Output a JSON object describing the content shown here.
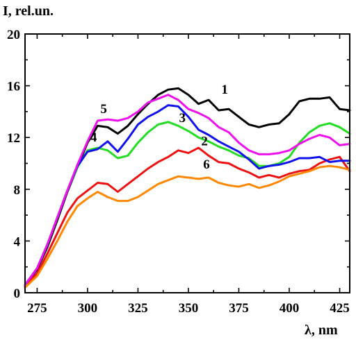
{
  "chart_data": {
    "type": "line",
    "ylabel": "I, rel.un.",
    "xlabel": "λ, nm",
    "xlim": [
      269,
      430
    ],
    "ylim": [
      0,
      20
    ],
    "xticks": [
      275,
      300,
      325,
      350,
      375,
      400,
      425
    ],
    "yticks": [
      0,
      4,
      8,
      12,
      16,
      20
    ],
    "grid": false,
    "series": [
      {
        "name": "1",
        "color": "#000000",
        "x": [
          269,
          275,
          280,
          285,
          290,
          295,
          300,
          305,
          310,
          315,
          320,
          325,
          330,
          335,
          340,
          345,
          350,
          355,
          360,
          365,
          370,
          375,
          380,
          385,
          390,
          395,
          400,
          405,
          410,
          415,
          420,
          425,
          430
        ],
        "y": [
          0.6,
          1.8,
          3.5,
          5.6,
          7.8,
          9.7,
          11.6,
          12.9,
          12.8,
          12.3,
          12.9,
          13.8,
          14.6,
          15.3,
          15.7,
          15.8,
          15.3,
          14.6,
          14.9,
          14.1,
          14.2,
          13.6,
          13.0,
          12.8,
          13.0,
          13.1,
          13.8,
          14.8,
          15.0,
          15.0,
          15.1,
          14.2,
          14.1
        ]
      },
      {
        "name": "2",
        "color": "#ee1111",
        "x": [
          269,
          275,
          280,
          285,
          290,
          295,
          300,
          305,
          310,
          315,
          320,
          325,
          330,
          335,
          340,
          345,
          350,
          355,
          360,
          365,
          370,
          375,
          380,
          385,
          390,
          395,
          400,
          405,
          410,
          415,
          420,
          425,
          430
        ],
        "y": [
          0.5,
          1.5,
          3.0,
          4.6,
          6.2,
          7.3,
          7.9,
          8.5,
          8.4,
          7.8,
          8.4,
          9.0,
          9.6,
          10.1,
          10.5,
          11.0,
          10.8,
          11.2,
          10.6,
          10.1,
          10.0,
          9.6,
          9.3,
          8.9,
          9.1,
          8.9,
          9.2,
          9.4,
          9.5,
          10.0,
          10.3,
          10.5,
          9.4
        ]
      },
      {
        "name": "3",
        "color": "#22dd22",
        "x": [
          269,
          275,
          280,
          285,
          290,
          295,
          300,
          305,
          310,
          315,
          320,
          325,
          330,
          335,
          340,
          345,
          350,
          355,
          360,
          365,
          370,
          375,
          380,
          385,
          390,
          395,
          400,
          405,
          410,
          415,
          420,
          425,
          430
        ],
        "y": [
          0.6,
          1.9,
          3.7,
          5.8,
          7.9,
          9.7,
          11.0,
          11.2,
          11.0,
          10.4,
          10.6,
          11.6,
          12.4,
          13.0,
          13.2,
          12.9,
          12.5,
          12.0,
          11.7,
          11.3,
          11.0,
          10.6,
          10.4,
          9.8,
          9.8,
          10.0,
          10.5,
          11.6,
          12.4,
          12.9,
          13.1,
          12.8,
          12.3
        ]
      },
      {
        "name": "4",
        "color": "#1111ee",
        "x": [
          269,
          275,
          280,
          285,
          290,
          295,
          300,
          305,
          310,
          315,
          320,
          325,
          330,
          335,
          340,
          345,
          350,
          355,
          360,
          365,
          370,
          375,
          380,
          385,
          390,
          395,
          400,
          405,
          410,
          415,
          420,
          425,
          430
        ],
        "y": [
          0.6,
          1.9,
          3.7,
          5.8,
          7.9,
          9.8,
          10.9,
          11.1,
          11.7,
          10.9,
          11.9,
          13.0,
          13.6,
          14.0,
          14.5,
          14.4,
          13.6,
          12.6,
          12.2,
          11.7,
          11.3,
          10.9,
          10.3,
          9.6,
          9.8,
          9.9,
          10.1,
          10.4,
          10.4,
          10.5,
          10.1,
          10.2,
          10.2
        ]
      },
      {
        "name": "5",
        "color": "#ee11ee",
        "x": [
          269,
          275,
          280,
          285,
          290,
          295,
          300,
          305,
          310,
          315,
          320,
          325,
          330,
          335,
          340,
          345,
          350,
          355,
          360,
          365,
          370,
          375,
          380,
          385,
          390,
          395,
          400,
          405,
          410,
          415,
          420,
          425,
          430
        ],
        "y": [
          0.6,
          1.9,
          3.7,
          5.8,
          7.9,
          9.9,
          11.7,
          13.3,
          13.4,
          13.3,
          13.5,
          14.0,
          14.7,
          15.0,
          15.3,
          14.9,
          14.2,
          13.9,
          13.5,
          12.8,
          12.4,
          11.6,
          11.0,
          10.7,
          10.7,
          10.8,
          11.0,
          11.5,
          11.9,
          12.2,
          12.0,
          11.4,
          11.5
        ]
      },
      {
        "name": "6",
        "color": "#ff8800",
        "x": [
          269,
          275,
          280,
          285,
          290,
          295,
          300,
          305,
          310,
          315,
          320,
          325,
          330,
          335,
          340,
          345,
          350,
          355,
          360,
          365,
          370,
          375,
          380,
          385,
          390,
          395,
          400,
          405,
          410,
          415,
          420,
          425,
          430
        ],
        "y": [
          0.4,
          1.3,
          2.6,
          4.0,
          5.5,
          6.7,
          7.3,
          7.8,
          7.4,
          7.1,
          7.1,
          7.4,
          7.9,
          8.4,
          8.7,
          9.0,
          8.9,
          8.8,
          8.9,
          8.5,
          8.3,
          8.2,
          8.4,
          8.1,
          8.3,
          8.6,
          9.0,
          9.2,
          9.4,
          9.7,
          9.8,
          9.7,
          9.5
        ]
      }
    ],
    "curve_labels": [
      {
        "text": "1",
        "x": 368,
        "y": 15.4
      },
      {
        "text": "2",
        "x": 358,
        "y": 11.4
      },
      {
        "text": "3",
        "x": 347,
        "y": 13.2
      },
      {
        "text": "4",
        "x": 303,
        "y": 11.7
      },
      {
        "text": "5",
        "x": 308,
        "y": 13.9
      },
      {
        "text": "6",
        "x": 359,
        "y": 9.6
      }
    ]
  }
}
